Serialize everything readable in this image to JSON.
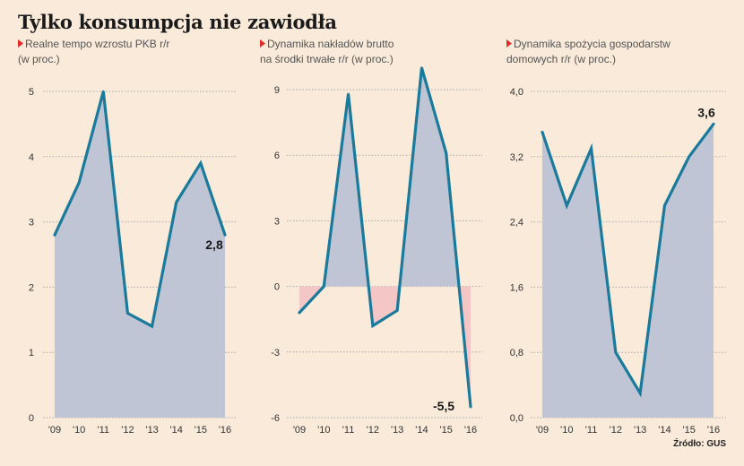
{
  "title": "Tylko konsumpcja nie zawiodła",
  "source": "Źródło: GUS",
  "colors": {
    "line": "#1a7a9c",
    "area_pos": "#bfc5d4",
    "area_neg": "#f5c6c6",
    "grid": "#a9a9a9",
    "marker": "#e32b2b",
    "background": "#f9ead9"
  },
  "chart_data": [
    {
      "type": "area",
      "title_lines": [
        "Realne tempo wzrostu PKB r/r",
        "(w proc.)"
      ],
      "categories": [
        "'09",
        "'10",
        "'11",
        "'12",
        "'13",
        "'14",
        "'15",
        "'16"
      ],
      "values": [
        2.8,
        3.6,
        5.0,
        1.6,
        1.4,
        3.3,
        3.9,
        2.8
      ],
      "yticks": [
        "0",
        "1",
        "2",
        "3",
        "4",
        "5"
      ],
      "ylim": [
        0,
        5
      ],
      "end_label": "2,8",
      "grid": true
    },
    {
      "type": "area",
      "title_lines": [
        "Dynamika nakładów brutto",
        "na środki trwałe r/r (w proc.)"
      ],
      "categories": [
        "'09",
        "'10",
        "'11",
        "'12",
        "'13",
        "'14",
        "'15",
        "'16"
      ],
      "values": [
        -1.2,
        0,
        8.8,
        -1.8,
        -1.1,
        10.0,
        6.1,
        -5.5
      ],
      "yticks": [
        "-6",
        "-3",
        "0",
        "3",
        "6",
        "9"
      ],
      "ylim": [
        -6,
        9
      ],
      "end_label": "-5,5",
      "grid": true
    },
    {
      "type": "area",
      "title_lines": [
        "Dynamika spożycia gospodarstw",
        "domowych r/r (w proc.)"
      ],
      "categories": [
        "'09",
        "'10",
        "'11",
        "'12",
        "'13",
        "'14",
        "'15",
        "'16"
      ],
      "values": [
        3.5,
        2.6,
        3.3,
        0.8,
        0.3,
        2.6,
        3.2,
        3.6
      ],
      "yticks": [
        "0,0",
        "0,8",
        "1,6",
        "2,4",
        "3,2",
        "4,0"
      ],
      "ylim": [
        0,
        4
      ],
      "end_label": "3,6",
      "grid": true
    }
  ]
}
